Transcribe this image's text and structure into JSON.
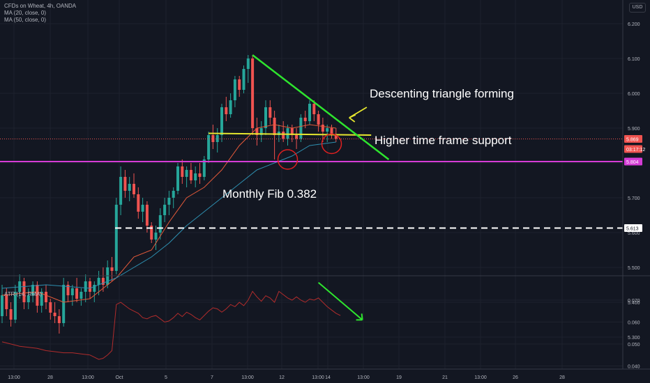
{
  "header": {
    "lines": [
      "CFDs on Wheat, 4h, OANDA",
      "MA (20, close, 0)",
      "MA (50, close, 0)"
    ],
    "currency": "USD"
  },
  "atr_header": "ATR (14, RMA)",
  "annotations": {
    "descending": "Descenting triangle forming",
    "support": "Higher time frame support",
    "fib": "Monthly Fib 0.382"
  },
  "colors": {
    "background": "#131722",
    "grid": "#1e222d",
    "axis_text": "#b2b5be",
    "up": "#26a69a",
    "down": "#ef5350",
    "ma20": "#e55a3a",
    "ma50": "#2e8fb0",
    "atr": "#b22c2c",
    "trend_line": "#2ee52e",
    "triangle_base": "#e6e62e",
    "support": "#d63cd6",
    "fib": "#ffffff",
    "circle": "#e02020"
  },
  "chart_data": [
    {
      "type": "candlestick",
      "title": "CFDs on Wheat, 4h, OANDA",
      "ylim": [
        5.25,
        6.25
      ],
      "y_ticks": [
        6.2,
        6.1,
        6.0,
        5.9,
        5.8,
        5.7,
        5.6,
        5.5,
        5.4,
        5.3
      ],
      "y_tick_labels": [
        "6.200",
        "6.100",
        "6.000",
        "5.900",
        "5.800",
        "5.700",
        "5.600",
        "5.500",
        "5.400",
        "5.300"
      ],
      "x_tick_labels": [
        "13:00",
        "28",
        "13:00",
        "Oct",
        "5",
        "7",
        "13:00",
        "12",
        "13:00",
        "14",
        "13:00",
        "19",
        "21",
        "13:00",
        "26",
        "28"
      ],
      "price_badges": [
        {
          "label": "5.869",
          "value": 5.869,
          "color": "#ef5350"
        },
        {
          "label": "03:17:12",
          "value": 5.84,
          "color": "#ef5350"
        },
        {
          "label": "5.804",
          "value": 5.804,
          "color": "#d63cd6"
        },
        {
          "label": "5.613",
          "value": 5.613,
          "color": "#ffffff"
        }
      ],
      "last_price": 5.869,
      "candles": [
        [
          5.36,
          5.45,
          5.34,
          5.42
        ],
        [
          5.42,
          5.44,
          5.36,
          5.38
        ],
        [
          5.38,
          5.4,
          5.33,
          5.35
        ],
        [
          5.35,
          5.45,
          5.34,
          5.43
        ],
        [
          5.43,
          5.48,
          5.41,
          5.46
        ],
        [
          5.46,
          5.47,
          5.38,
          5.4
        ],
        [
          5.4,
          5.44,
          5.38,
          5.42
        ],
        [
          5.42,
          5.46,
          5.4,
          5.45
        ],
        [
          5.45,
          5.46,
          5.37,
          5.39
        ],
        [
          5.39,
          5.44,
          5.37,
          5.43
        ],
        [
          5.43,
          5.45,
          5.38,
          5.4
        ],
        [
          5.4,
          5.41,
          5.35,
          5.37
        ],
        [
          5.37,
          5.4,
          5.34,
          5.36
        ],
        [
          5.36,
          5.38,
          5.31,
          5.34
        ],
        [
          5.34,
          5.47,
          5.33,
          5.45
        ],
        [
          5.45,
          5.46,
          5.4,
          5.42
        ],
        [
          5.42,
          5.45,
          5.39,
          5.44
        ],
        [
          5.44,
          5.47,
          5.4,
          5.41
        ],
        [
          5.41,
          5.44,
          5.39,
          5.43
        ],
        [
          5.43,
          5.48,
          5.4,
          5.46
        ],
        [
          5.46,
          5.47,
          5.41,
          5.43
        ],
        [
          5.43,
          5.46,
          5.4,
          5.45
        ],
        [
          5.45,
          5.49,
          5.42,
          5.47
        ],
        [
          5.47,
          5.5,
          5.43,
          5.45
        ],
        [
          5.45,
          5.52,
          5.44,
          5.5
        ],
        [
          5.5,
          5.53,
          5.46,
          5.49
        ],
        [
          5.49,
          5.7,
          5.48,
          5.68
        ],
        [
          5.68,
          5.79,
          5.65,
          5.76
        ],
        [
          5.76,
          5.78,
          5.7,
          5.72
        ],
        [
          5.72,
          5.76,
          5.69,
          5.74
        ],
        [
          5.74,
          5.77,
          5.7,
          5.71
        ],
        [
          5.71,
          5.73,
          5.64,
          5.66
        ],
        [
          5.66,
          5.7,
          5.63,
          5.68
        ],
        [
          5.68,
          5.69,
          5.6,
          5.62
        ],
        [
          5.62,
          5.63,
          5.57,
          5.58
        ],
        [
          5.58,
          5.62,
          5.55,
          5.6
        ],
        [
          5.6,
          5.67,
          5.58,
          5.65
        ],
        [
          5.65,
          5.7,
          5.63,
          5.68
        ],
        [
          5.68,
          5.72,
          5.65,
          5.7
        ],
        [
          5.7,
          5.73,
          5.67,
          5.72
        ],
        [
          5.72,
          5.8,
          5.71,
          5.79
        ],
        [
          5.79,
          5.81,
          5.74,
          5.76
        ],
        [
          5.76,
          5.79,
          5.73,
          5.78
        ],
        [
          5.78,
          5.8,
          5.74,
          5.75
        ],
        [
          5.75,
          5.79,
          5.73,
          5.77
        ],
        [
          5.77,
          5.8,
          5.74,
          5.76
        ],
        [
          5.76,
          5.82,
          5.75,
          5.81
        ],
        [
          5.81,
          5.89,
          5.8,
          5.88
        ],
        [
          5.88,
          5.91,
          5.84,
          5.86
        ],
        [
          5.86,
          5.9,
          5.83,
          5.88
        ],
        [
          5.88,
          5.97,
          5.86,
          5.96
        ],
        [
          5.96,
          5.99,
          5.92,
          5.94
        ],
        [
          5.94,
          6.0,
          5.93,
          5.98
        ],
        [
          5.98,
          6.05,
          5.96,
          6.04
        ],
        [
          6.04,
          6.05,
          5.99,
          6.01
        ],
        [
          6.01,
          6.08,
          6.0,
          6.07
        ],
        [
          6.07,
          6.11,
          6.03,
          6.1
        ],
        [
          6.1,
          6.11,
          5.88,
          5.9
        ],
        [
          5.9,
          5.93,
          5.85,
          5.88
        ],
        [
          5.88,
          5.92,
          5.86,
          5.9
        ],
        [
          5.9,
          5.98,
          5.88,
          5.96
        ],
        [
          5.96,
          5.98,
          5.91,
          5.93
        ],
        [
          5.93,
          5.95,
          5.81,
          5.88
        ],
        [
          5.88,
          5.91,
          5.86,
          5.89
        ],
        [
          5.89,
          5.92,
          5.86,
          5.87
        ],
        [
          5.87,
          5.91,
          5.85,
          5.9
        ],
        [
          5.9,
          5.91,
          5.86,
          5.88
        ],
        [
          5.88,
          5.9,
          5.84,
          5.87
        ],
        [
          5.87,
          5.94,
          5.86,
          5.93
        ],
        [
          5.93,
          5.95,
          5.9,
          5.92
        ],
        [
          5.92,
          5.98,
          5.91,
          5.97
        ],
        [
          5.97,
          5.98,
          5.92,
          5.94
        ],
        [
          5.94,
          5.95,
          5.89,
          5.91
        ],
        [
          5.91,
          5.93,
          5.86,
          5.89
        ],
        [
          5.89,
          5.91,
          5.86,
          5.9
        ],
        [
          5.9,
          5.91,
          5.87,
          5.88
        ],
        [
          5.88,
          5.9,
          5.86,
          5.87
        ]
      ],
      "ma20": [
        [
          0,
          5.42
        ],
        [
          8,
          5.43
        ],
        [
          14,
          5.4
        ],
        [
          20,
          5.41
        ],
        [
          26,
          5.47
        ],
        [
          30,
          5.53
        ],
        [
          34,
          5.55
        ],
        [
          38,
          5.63
        ],
        [
          42,
          5.7
        ],
        [
          46,
          5.73
        ],
        [
          50,
          5.78
        ],
        [
          54,
          5.85
        ],
        [
          58,
          5.9
        ],
        [
          62,
          5.91
        ],
        [
          66,
          5.9
        ],
        [
          70,
          5.91
        ],
        [
          76,
          5.9
        ]
      ],
      "ma50": [
        [
          0,
          5.44
        ],
        [
          10,
          5.45
        ],
        [
          20,
          5.44
        ],
        [
          26,
          5.47
        ],
        [
          30,
          5.5
        ],
        [
          34,
          5.53
        ],
        [
          38,
          5.57
        ],
        [
          42,
          5.62
        ],
        [
          46,
          5.66
        ],
        [
          50,
          5.7
        ],
        [
          54,
          5.74
        ],
        [
          58,
          5.78
        ],
        [
          62,
          5.8
        ],
        [
          66,
          5.82
        ],
        [
          70,
          5.85
        ],
        [
          76,
          5.86
        ]
      ],
      "drawings": {
        "descending_trend_line": {
          "from": [
            57,
            6.11
          ],
          "to": [
            88,
            5.81
          ]
        },
        "triangle_base": {
          "from": [
            47,
            5.885
          ],
          "to": [
            84,
            5.88
          ],
          "value": 5.88
        },
        "support_level": 5.804,
        "fib_level": 5.613,
        "circles": [
          {
            "index": 65,
            "value": 5.81
          },
          {
            "index": 75,
            "value": 5.855
          }
        ],
        "arrow": {
          "from": [
            83,
            5.96
          ],
          "to": [
            79,
            5.93
          ]
        }
      }
    },
    {
      "type": "line",
      "title": "ATR (14, RMA)",
      "ylim": [
        0.038,
        0.086
      ],
      "y_ticks": [
        0.07,
        0.06,
        0.05,
        0.04
      ],
      "y_tick_labels": [
        "0.070",
        "0.060",
        "0.050",
        "0.040"
      ],
      "series": [
        {
          "name": "ATR (14, RMA)",
          "values": [
            [
              0,
              0.051
            ],
            [
              2,
              0.05
            ],
            [
              4,
              0.049
            ],
            [
              6,
              0.0485
            ],
            [
              8,
              0.048
            ],
            [
              10,
              0.047
            ],
            [
              12,
              0.0465
            ],
            [
              14,
              0.046
            ],
            [
              16,
              0.046
            ],
            [
              18,
              0.0455
            ],
            [
              20,
              0.045
            ],
            [
              21,
              0.044
            ],
            [
              22,
              0.043
            ],
            [
              23,
              0.0435
            ],
            [
              24,
              0.045
            ],
            [
              25,
              0.047
            ],
            [
              26,
              0.068
            ],
            [
              27,
              0.069
            ],
            [
              28,
              0.0675
            ],
            [
              29,
              0.066
            ],
            [
              30,
              0.065
            ],
            [
              31,
              0.064
            ],
            [
              32,
              0.062
            ],
            [
              33,
              0.0615
            ],
            [
              34,
              0.0625
            ],
            [
              35,
              0.063
            ],
            [
              36,
              0.0615
            ],
            [
              37,
              0.06
            ],
            [
              38,
              0.0605
            ],
            [
              39,
              0.062
            ],
            [
              40,
              0.064
            ],
            [
              41,
              0.0625
            ],
            [
              42,
              0.0645
            ],
            [
              43,
              0.0635
            ],
            [
              44,
              0.062
            ],
            [
              45,
              0.061
            ],
            [
              46,
              0.063
            ],
            [
              47,
              0.065
            ],
            [
              48,
              0.0665
            ],
            [
              49,
              0.066
            ],
            [
              50,
              0.0645
            ],
            [
              51,
              0.066
            ],
            [
              52,
              0.068
            ],
            [
              53,
              0.067
            ],
            [
              54,
              0.069
            ],
            [
              55,
              0.0675
            ],
            [
              56,
              0.07
            ],
            [
              57,
              0.074
            ],
            [
              58,
              0.0715
            ],
            [
              59,
              0.0695
            ],
            [
              60,
              0.072
            ],
            [
              61,
              0.071
            ],
            [
              62,
              0.069
            ],
            [
              63,
              0.074
            ],
            [
              64,
              0.0725
            ],
            [
              65,
              0.071
            ],
            [
              66,
              0.07
            ],
            [
              67,
              0.0715
            ],
            [
              68,
              0.07
            ],
            [
              69,
              0.069
            ],
            [
              70,
              0.0705
            ],
            [
              71,
              0.07
            ],
            [
              72,
              0.071
            ],
            [
              73,
              0.069
            ],
            [
              74,
              0.067
            ],
            [
              75,
              0.0655
            ],
            [
              76,
              0.064
            ],
            [
              77,
              0.063
            ]
          ]
        }
      ],
      "drawings": {
        "arrow": {
          "from": [
            72,
            0.078
          ],
          "to": [
            82,
            0.061
          ]
        }
      }
    }
  ]
}
